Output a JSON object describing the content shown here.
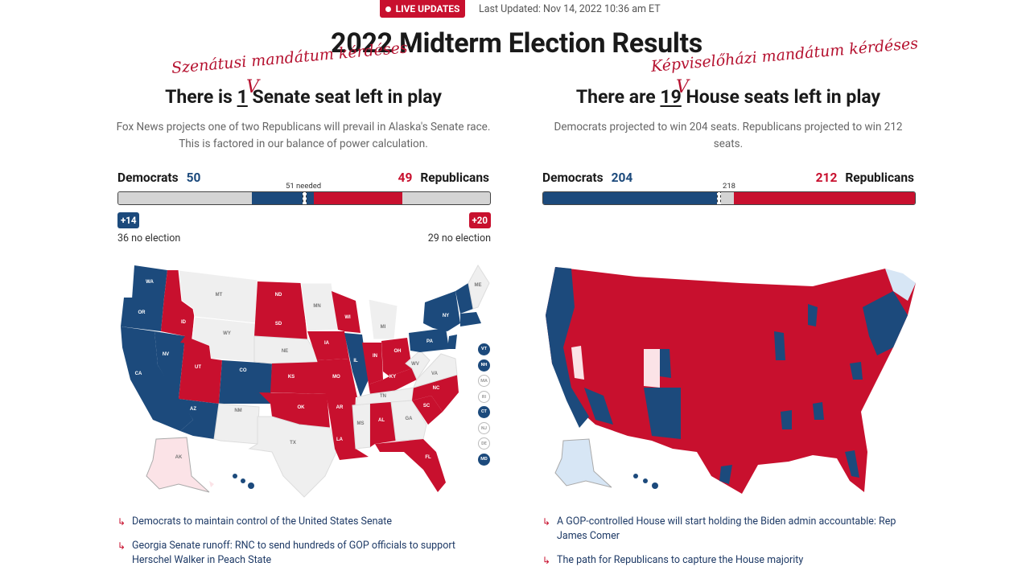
{
  "header": {
    "live_label": "LIVE UPDATES",
    "last_updated": "Last Updated: Nov 14, 2022 10:36 am ET",
    "title": "2022 Midterm Election Results"
  },
  "senate": {
    "annotation": "Szenátusi mandátum kérdéses",
    "check_mark": "V",
    "title_prefix": "There is ",
    "title_num": "1",
    "title_suffix": " Senate seat left in play",
    "description": "Fox News projects one of two Republicans will prevail in Alaska's Senate race. This is factored in our balance of power calculation.",
    "dem_label": "Democrats",
    "dem_count": "50",
    "rep_label": "Republicans",
    "rep_count": "49",
    "needed_label": "51 needed",
    "dem_gain": "+14",
    "rep_gain": "+20",
    "dem_no_election": "36 no election",
    "rep_no_election": "29 no election",
    "bar": {
      "dem_no_election": 36,
      "dem_elected": 14,
      "rep_elected": 20,
      "rep_no_election": 29,
      "total": 100
    },
    "state_labels": [
      "WA",
      "OR",
      "CA",
      "NV",
      "ID",
      "MT",
      "WY",
      "UT",
      "AZ",
      "CO",
      "NM",
      "ND",
      "SD",
      "NE",
      "KS",
      "OK",
      "TX",
      "MN",
      "IA",
      "MO",
      "AR",
      "LA",
      "WI",
      "IL",
      "MI",
      "IN",
      "OH",
      "KY",
      "TN",
      "MS",
      "AL",
      "GA",
      "FL",
      "SC",
      "NC",
      "VA",
      "WV",
      "PA",
      "NY",
      "ME",
      "AK"
    ],
    "small_states": [
      "VT",
      "NH",
      "MA",
      "RI",
      "CT",
      "NJ",
      "DE",
      "MD"
    ],
    "links": [
      "Democrats to maintain control of the United States Senate",
      "Georgia Senate runoff: RNC to send hundreds of GOP officials to support Herschel Walker in Peach State"
    ]
  },
  "house": {
    "annotation": "Képviselőházi mandátum kérdéses",
    "check_mark": "V",
    "title_prefix": "There are ",
    "title_num": "19",
    "title_suffix": " House seats left in play",
    "description": "Democrats projected to win 204 seats. Republicans projected to win 212 seats.",
    "dem_label": "Democrats",
    "dem_count": "204",
    "rep_label": "Republicans",
    "rep_count": "212",
    "needed_label": "218",
    "bar": {
      "dem": 204,
      "rep": 212,
      "total": 435
    },
    "links": [
      "A GOP-controlled House will start holding the Biden admin accountable: Rep James Comer",
      "The path for Republicans to capture the House majority"
    ]
  },
  "colors": {
    "dem": "#1c4a7c",
    "rep": "#c8102e",
    "no_election": "#efefef",
    "lean_rep": "#fbe3e7",
    "lean_dem": "#d7e6f5",
    "accent": "#b5112f"
  },
  "icons": {
    "link_arrow": "↳"
  }
}
